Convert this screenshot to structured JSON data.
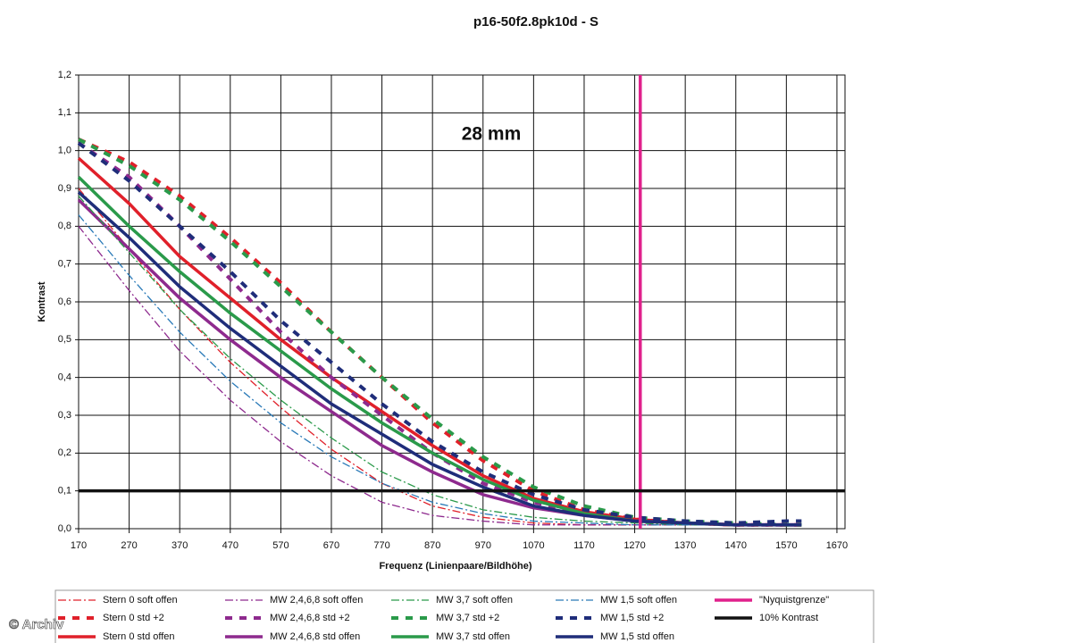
{
  "chart_data": {
    "type": "line",
    "title": "p16-50f2.8pk10d - S",
    "annotation": "28 mm",
    "x_label": "Frequenz (Linienpaare/Bildhöhe)",
    "y_label": "Kontrast",
    "watermark": "© Archiv",
    "grid": true,
    "xlim": [
      170,
      1686
    ],
    "xticks": [
      170,
      270,
      370,
      470,
      570,
      670,
      770,
      870,
      970,
      1070,
      1170,
      1270,
      1370,
      1470,
      1570,
      1670
    ],
    "ylim": [
      0,
      1.2
    ],
    "yticks": [
      {
        "value": 0,
        "label": "0,0"
      },
      {
        "value": 0.1,
        "label": "0,1"
      },
      {
        "value": 0.2,
        "label": "0,2"
      },
      {
        "value": 0.3,
        "label": "0,3"
      },
      {
        "value": 0.4,
        "label": "0,4"
      },
      {
        "value": 0.5,
        "label": "0,5"
      },
      {
        "value": 0.6,
        "label": "0,6"
      },
      {
        "value": 0.7,
        "label": "0,7"
      },
      {
        "value": 0.8,
        "label": "0,8"
      },
      {
        "value": 0.9,
        "label": "0,9"
      },
      {
        "value": 1.0,
        "label": "1,0"
      },
      {
        "value": 1.1,
        "label": "1,1"
      },
      {
        "value": 1.2,
        "label": "1,2"
      }
    ],
    "x": [
      170,
      270,
      370,
      470,
      570,
      670,
      770,
      870,
      970,
      1070,
      1170,
      1270,
      1370,
      1470,
      1570,
      1600
    ],
    "series": [
      {
        "name": "Stern 0 soft offen",
        "color": "#e0202a",
        "style": "dashdot",
        "values": [
          0.9,
          0.74,
          0.58,
          0.44,
          0.32,
          0.21,
          0.12,
          0.06,
          0.03,
          0.015,
          0.01,
          0.01,
          0.01,
          0.01,
          0.01,
          0.01
        ]
      },
      {
        "name": "Stern 0 std +2",
        "color": "#e0202a",
        "style": "dash",
        "values": [
          1.03,
          0.97,
          0.88,
          0.77,
          0.65,
          0.52,
          0.4,
          0.28,
          0.18,
          0.1,
          0.05,
          0.025,
          0.015,
          0.01,
          0.01,
          0.01
        ]
      },
      {
        "name": "Stern 0 std offen",
        "color": "#e0202a",
        "style": "solid",
        "values": [
          0.98,
          0.86,
          0.72,
          0.61,
          0.5,
          0.4,
          0.31,
          0.22,
          0.14,
          0.08,
          0.045,
          0.025,
          0.015,
          0.01,
          0.01,
          0.01
        ]
      },
      {
        "name": "MW 2,4,6,8 soft offen",
        "color": "#8e2a8e",
        "style": "dashdot",
        "values": [
          0.8,
          0.63,
          0.47,
          0.34,
          0.23,
          0.14,
          0.07,
          0.035,
          0.02,
          0.01,
          0.01,
          0.01,
          0.01,
          0.01,
          0.01,
          0.01
        ]
      },
      {
        "name": "MW 2,4,6,8 std +2",
        "color": "#8e2a8e",
        "style": "dash",
        "values": [
          1.02,
          0.93,
          0.8,
          0.66,
          0.52,
          0.4,
          0.3,
          0.2,
          0.12,
          0.07,
          0.04,
          0.02,
          0.015,
          0.01,
          0.01,
          0.01
        ]
      },
      {
        "name": "MW 2,4,6,8 std offen",
        "color": "#8e2a8e",
        "style": "solid",
        "values": [
          0.87,
          0.74,
          0.61,
          0.5,
          0.4,
          0.31,
          0.22,
          0.15,
          0.09,
          0.055,
          0.035,
          0.02,
          0.015,
          0.01,
          0.01,
          0.01
        ]
      },
      {
        "name": "MW 3,7 soft offen",
        "color": "#2a9a4a",
        "style": "dashdot",
        "values": [
          0.88,
          0.73,
          0.58,
          0.45,
          0.34,
          0.24,
          0.15,
          0.09,
          0.05,
          0.03,
          0.02,
          0.015,
          0.01,
          0.01,
          0.01,
          0.01
        ]
      },
      {
        "name": "MW 3,7 std +2",
        "color": "#2a9a4a",
        "style": "dash",
        "values": [
          1.03,
          0.96,
          0.87,
          0.76,
          0.64,
          0.52,
          0.4,
          0.29,
          0.19,
          0.11,
          0.06,
          0.03,
          0.02,
          0.015,
          0.01,
          0.01
        ]
      },
      {
        "name": "MW 3,7 std offen",
        "color": "#2a9a4a",
        "style": "solid",
        "values": [
          0.93,
          0.8,
          0.68,
          0.57,
          0.47,
          0.37,
          0.28,
          0.2,
          0.13,
          0.075,
          0.04,
          0.02,
          0.015,
          0.01,
          0.01,
          0.01
        ]
      },
      {
        "name": "MW 1,5 soft offen",
        "color": "#2a7ab8",
        "style": "dashdot",
        "values": [
          0.83,
          0.67,
          0.52,
          0.39,
          0.28,
          0.19,
          0.12,
          0.07,
          0.04,
          0.02,
          0.015,
          0.01,
          0.01,
          0.01,
          0.01,
          0.01
        ]
      },
      {
        "name": "MW 1,5 std +2",
        "color": "#1f2d7a",
        "style": "dash",
        "values": [
          1.02,
          0.92,
          0.8,
          0.68,
          0.55,
          0.44,
          0.33,
          0.23,
          0.15,
          0.09,
          0.05,
          0.03,
          0.02,
          0.015,
          0.02,
          0.02
        ]
      },
      {
        "name": "MW 1,5 std offen",
        "color": "#1f2d7a",
        "style": "solid",
        "values": [
          0.89,
          0.77,
          0.64,
          0.53,
          0.43,
          0.33,
          0.25,
          0.17,
          0.11,
          0.06,
          0.035,
          0.02,
          0.015,
          0.01,
          0.01,
          0.01
        ]
      }
    ],
    "reference_lines": [
      {
        "name": "\"Nyquistgrenze\"",
        "color": "#e0208c",
        "orientation": "vertical",
        "value": 1281
      },
      {
        "name": "10% Kontrast",
        "color": "#111111",
        "orientation": "horizontal",
        "value": 0.1
      }
    ]
  }
}
